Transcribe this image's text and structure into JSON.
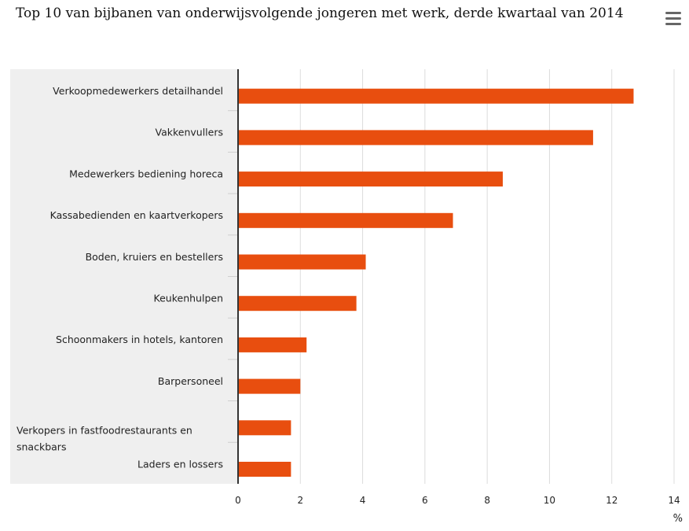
{
  "title": "Top 10 van bijbanen van onderwijsvolgende jongeren met werk, derde kwartaal van 2014",
  "menu_icon": "hamburger-menu-icon",
  "colors": {
    "bar": "#e84e0f",
    "category_band": "#efefef",
    "gridline": "#dcdcdc",
    "axis": "#333333"
  },
  "chart_data": {
    "type": "bar",
    "orientation": "horizontal",
    "title": "Top 10 van bijbanen van onderwijsvolgende jongeren met werk, derde kwartaal van 2014",
    "categories": [
      [
        "Verkoopmedewerkers detailhandel"
      ],
      [
        "Vakkenvullers"
      ],
      [
        "Medewerkers bediening horeca"
      ],
      [
        "Kassabedienden en kaartverkopers"
      ],
      [
        "Boden, kruiers en bestellers"
      ],
      [
        "Keukenhulpen"
      ],
      [
        "Schoonmakers in hotels, kantoren"
      ],
      [
        "Barpersoneel"
      ],
      [
        "Verkopers in fastfoodrestaurants en",
        "snackbars"
      ],
      [
        "Laders en lossers"
      ]
    ],
    "values": [
      12.7,
      11.4,
      8.5,
      6.9,
      4.1,
      3.8,
      2.2,
      2.0,
      1.7,
      1.7
    ],
    "xlabel": "%",
    "xlim": [
      0,
      14
    ],
    "xticks": [
      0,
      2,
      4,
      6,
      8,
      10,
      12,
      14
    ],
    "grid": true
  }
}
